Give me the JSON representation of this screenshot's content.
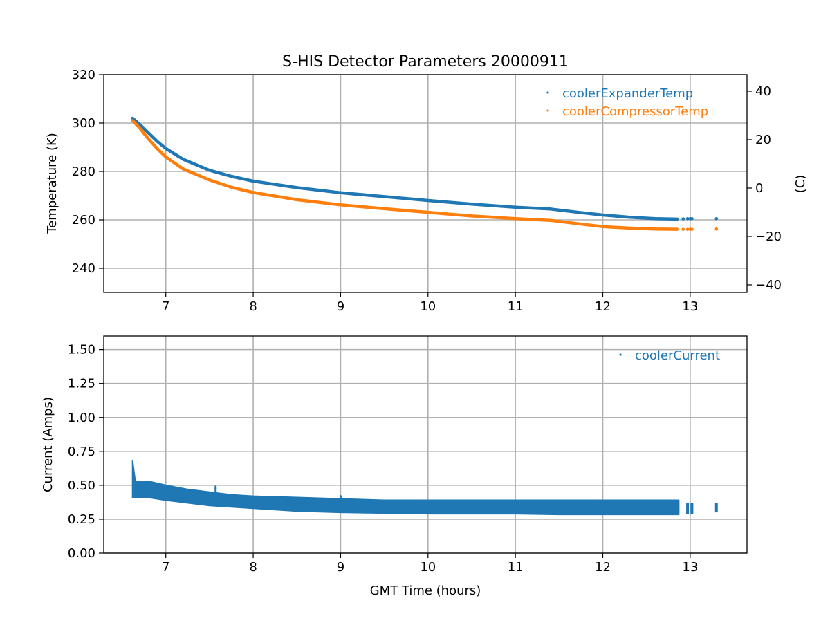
{
  "chart_data": [
    {
      "type": "scatter",
      "title": "S-HIS Detector Parameters 20000911",
      "xlabel": "",
      "ylabel": "Temperature (K)",
      "ylabel_right": "(C)",
      "xlim": [
        6.29,
        13.65
      ],
      "ylim": [
        230,
        320
      ],
      "ylim_right": [
        -43.15,
        46.85
      ],
      "xticks": [
        7,
        8,
        9,
        10,
        11,
        12,
        13
      ],
      "yticks": [
        240,
        260,
        280,
        300,
        320
      ],
      "yticks_right": [
        -40,
        -20,
        0,
        20,
        40
      ],
      "yticks_right_labels": [
        "−40",
        "−20",
        "0",
        "20",
        "40"
      ],
      "grid": true,
      "legend_position": "top-right",
      "series": [
        {
          "name": "coolerExpanderTemp",
          "color": "#1f77b4",
          "x": [
            6.62,
            6.7,
            6.8,
            6.9,
            7.0,
            7.2,
            7.5,
            7.75,
            8.0,
            8.5,
            9.0,
            9.5,
            10.0,
            10.5,
            11.0,
            11.4,
            11.7,
            12.0,
            12.3,
            12.6,
            12.85
          ],
          "y": [
            302,
            299.5,
            296,
            292.5,
            289.5,
            285,
            280.5,
            278,
            276,
            273.3,
            271.2,
            269.6,
            268,
            266.5,
            265.2,
            264.5,
            263.2,
            262,
            261.1,
            260.5,
            260.3
          ],
          "isolated_points": {
            "x": [
              12.92,
              12.97,
              13.0,
              13.02,
              13.3
            ],
            "y": [
              260.4,
              260.5,
              260.5,
              260.5,
              260.5
            ]
          }
        },
        {
          "name": "coolerCompressorTemp",
          "color": "#ff7f0e",
          "x": [
            6.62,
            6.7,
            6.8,
            6.9,
            7.0,
            7.2,
            7.5,
            7.75,
            8.0,
            8.5,
            9.0,
            9.5,
            10.0,
            10.5,
            11.0,
            11.4,
            11.7,
            12.0,
            12.3,
            12.6,
            12.85
          ],
          "y": [
            301,
            298,
            293.5,
            289.5,
            286,
            281,
            276.5,
            273.5,
            271.3,
            268.3,
            266.2,
            264.6,
            263.1,
            261.6,
            260.5,
            259.8,
            258.5,
            257.2,
            256.6,
            256.2,
            256.1
          ],
          "isolated_points": {
            "x": [
              12.92,
              12.97,
              13.0,
              13.02,
              13.3
            ],
            "y": [
              256.1,
              256.1,
              256.1,
              256.1,
              256.2
            ]
          }
        }
      ]
    },
    {
      "type": "scatter",
      "title": "",
      "xlabel": "GMT Time (hours)",
      "ylabel": "Current (Amps)",
      "xlim": [
        6.29,
        13.65
      ],
      "ylim": [
        0,
        1.6
      ],
      "xticks": [
        7,
        8,
        9,
        10,
        11,
        12,
        13
      ],
      "yticks": [
        0,
        0.25,
        0.5,
        0.75,
        1.0,
        1.25,
        1.5
      ],
      "ytick_labels": [
        "0.00",
        "0.25",
        "0.50",
        "0.75",
        "1.00",
        "1.25",
        "1.50"
      ],
      "grid": true,
      "legend_position": "top-right",
      "series": [
        {
          "name": "coolerCurrent",
          "color": "#1f77b4",
          "band_x": [
            6.62,
            6.65,
            6.8,
            7.0,
            7.25,
            7.5,
            7.75,
            8.0,
            8.5,
            9.0,
            9.5,
            10.0,
            10.5,
            11.0,
            11.5,
            12.0,
            12.5,
            12.87
          ],
          "band_min": [
            0.41,
            0.41,
            0.41,
            0.39,
            0.37,
            0.35,
            0.34,
            0.33,
            0.31,
            0.3,
            0.295,
            0.29,
            0.29,
            0.29,
            0.285,
            0.285,
            0.285,
            0.285
          ],
          "band_max": [
            0.68,
            0.53,
            0.53,
            0.5,
            0.47,
            0.45,
            0.43,
            0.42,
            0.41,
            0.4,
            0.39,
            0.39,
            0.39,
            0.39,
            0.39,
            0.39,
            0.39,
            0.39
          ],
          "spikes": {
            "x": [
              7.57,
              9.0
            ],
            "y": [
              0.49,
              0.42
            ]
          },
          "isolated_ranges": {
            "x": [
              12.97,
              13.02,
              13.3
            ],
            "min": [
              0.29,
              0.29,
              0.3
            ],
            "max": [
              0.37,
              0.37,
              0.37
            ]
          }
        }
      ]
    }
  ]
}
